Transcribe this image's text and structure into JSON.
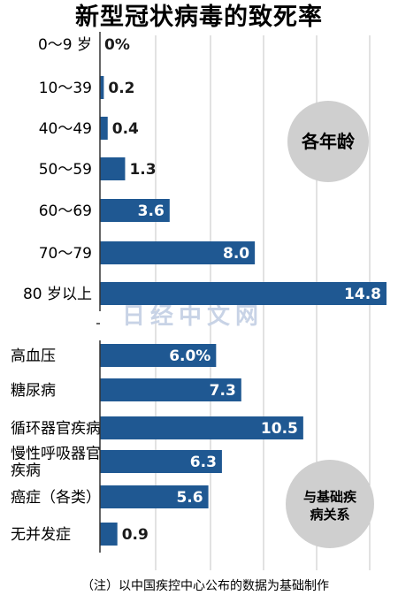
{
  "title": "新型冠状病毒的致死率",
  "note": "（注）以中国疾控中心公布的数据为基础制作",
  "watermark": "日经中文网",
  "colors": {
    "bar": "#1f5892",
    "badge": "#cfcfcf",
    "grid": "#c4c4c4",
    "axis": "#333333"
  },
  "chart_data": [
    {
      "type": "bar",
      "orientation": "horizontal",
      "title": "各年龄",
      "categories": [
        "0～9 岁",
        "10～39",
        "40～49",
        "50～59",
        "60～69",
        "70～79",
        "80 岁以上"
      ],
      "values": [
        0,
        0.2,
        0.4,
        1.3,
        3.6,
        8.0,
        14.8
      ],
      "value_labels": [
        "0%",
        "0.2",
        "0.4",
        "1.3",
        "3.6",
        "8.0",
        "14.8"
      ],
      "unit": "%",
      "xlim": [
        0,
        15
      ],
      "grid": true
    },
    {
      "type": "bar",
      "orientation": "horizontal",
      "title": "与基础疾病关系",
      "categories": [
        "高血压",
        "糖尿病",
        "循环器官疾病",
        "慢性呼吸器官疾病",
        "癌症（各类）",
        "无并发症"
      ],
      "values": [
        6.0,
        7.3,
        10.5,
        6.3,
        5.6,
        0.9
      ],
      "value_labels": [
        "6.0%",
        "7.3",
        "10.5",
        "6.3",
        "5.6",
        "0.9"
      ],
      "unit": "%",
      "xlim": [
        0,
        11
      ],
      "grid": true
    }
  ]
}
